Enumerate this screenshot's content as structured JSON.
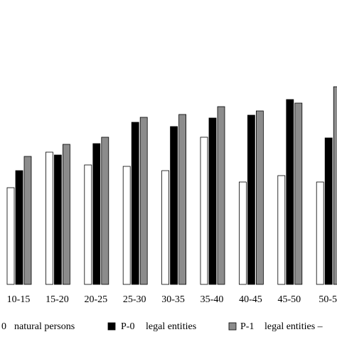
{
  "chart_data": {
    "type": "bar",
    "categories": [
      "10-15",
      "15-20",
      "20-25",
      "25-30",
      "30-35",
      "35-40",
      "40-45",
      "45-50",
      "50-5"
    ],
    "series": [
      {
        "code": "0",
        "name": "natural persons",
        "color": "#ffffff",
        "values": [
          136,
          186,
          168,
          166,
          160,
          207,
          144,
          153,
          144
        ]
      },
      {
        "code": "P-0",
        "name": "legal entities",
        "color": "#000000",
        "values": [
          160,
          182,
          198,
          228,
          222,
          234,
          238,
          260,
          206
        ]
      },
      {
        "code": "P-1",
        "name": "legal entities –",
        "color": "#8c8c8c",
        "values": [
          180,
          197,
          207,
          235,
          239,
          250,
          244,
          255,
          278
        ]
      }
    ],
    "ylim": [
      0,
      400
    ]
  }
}
